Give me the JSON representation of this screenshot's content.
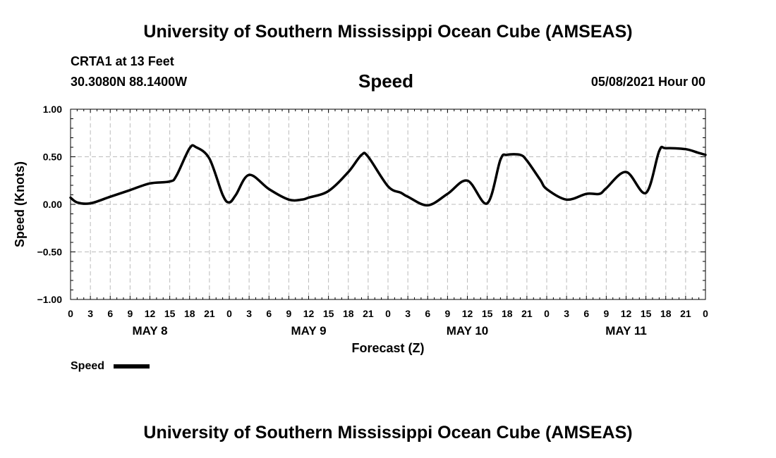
{
  "header": {
    "title": "University of Southern Mississippi Ocean Cube (AMSEAS)",
    "station": "CRTA1 at 13 Feet",
    "location": "30.3080N  88.1400W",
    "datetime": "05/08/2021 Hour 00"
  },
  "footer": {
    "title": "University of Southern Mississippi Ocean Cube (AMSEAS)"
  },
  "colors": {
    "line": "#000000",
    "grid": "#bbbbbb"
  },
  "chart_data": {
    "type": "line",
    "title": "Speed",
    "xlabel": "Forecast (Z)",
    "ylabel": "Speed (Knots)",
    "ylim": [
      -1.0,
      1.0
    ],
    "xlim": [
      0,
      96
    ],
    "yticks": [
      -1.0,
      -0.5,
      0.0,
      0.5,
      1.0
    ],
    "ytick_labels": [
      "−1.00",
      "−0.50",
      "0.00",
      "0.50",
      "1.00"
    ],
    "xticks": [
      0,
      3,
      6,
      9,
      12,
      15,
      18,
      21,
      24,
      27,
      30,
      33,
      36,
      39,
      42,
      45,
      48,
      51,
      54,
      57,
      60,
      63,
      66,
      69,
      72,
      75,
      78,
      81,
      84,
      87,
      90,
      93,
      96
    ],
    "xtick_labels": [
      "0",
      "3",
      "6",
      "9",
      "12",
      "15",
      "18",
      "21",
      "0",
      "3",
      "6",
      "9",
      "12",
      "15",
      "18",
      "21",
      "0",
      "3",
      "6",
      "9",
      "12",
      "15",
      "18",
      "21",
      "0",
      "3",
      "6",
      "9",
      "12",
      "15",
      "18",
      "21",
      "0"
    ],
    "day_labels": [
      {
        "x": 12,
        "label": "MAY 8"
      },
      {
        "x": 36,
        "label": "MAY 9"
      },
      {
        "x": 60,
        "label": "MAY 10"
      },
      {
        "x": 84,
        "label": "MAY 11"
      }
    ],
    "grid": true,
    "legend": "bottom-left",
    "series": [
      {
        "name": "Speed",
        "x": [
          0,
          1,
          3,
          6,
          9,
          12,
          15,
          16,
          18,
          19,
          21,
          23,
          24,
          25,
          27,
          30,
          33,
          35,
          36,
          39,
          42,
          44,
          45,
          48,
          50,
          51,
          54,
          57,
          60,
          63,
          65,
          66,
          68,
          69,
          71,
          72,
          75,
          78,
          80,
          81,
          84,
          87,
          89,
          90,
          93,
          95,
          96
        ],
        "y": [
          0.07,
          0.02,
          0.01,
          0.08,
          0.15,
          0.22,
          0.24,
          0.3,
          0.59,
          0.6,
          0.48,
          0.1,
          0.02,
          0.1,
          0.31,
          0.16,
          0.05,
          0.05,
          0.07,
          0.14,
          0.34,
          0.52,
          0.5,
          0.19,
          0.12,
          0.08,
          -0.01,
          0.11,
          0.25,
          0.01,
          0.47,
          0.52,
          0.52,
          0.46,
          0.26,
          0.16,
          0.05,
          0.11,
          0.11,
          0.17,
          0.34,
          0.12,
          0.56,
          0.59,
          0.58,
          0.54,
          0.52
        ]
      }
    ]
  }
}
